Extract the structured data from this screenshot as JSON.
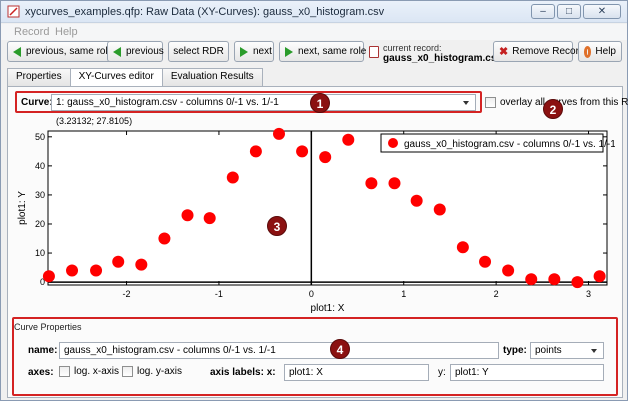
{
  "window": {
    "title": "xycurves_examples.qfp: Raw Data (XY-Curves): gauss_x0_histogram.csv",
    "controls": [
      "–",
      "□",
      "✕"
    ]
  },
  "menu": [
    "Record",
    "Help"
  ],
  "toolbar": {
    "prev_same_role": "previous, same role",
    "previous": "previous",
    "select_rdr": "select RDR",
    "next": "next",
    "next_same_role": "next, same role",
    "current_record_label": "current record:",
    "current_record_value": "gauss_x0_histogram.csv",
    "remove_record": "Remove Record",
    "help": "Help"
  },
  "tabs": [
    "Properties",
    "XY-Curves editor",
    "Evaluation Results"
  ],
  "curve": {
    "label": "Curve:",
    "selected": "1: gauss_x0_histogram.csv - columns 0/-1 vs. 1/-1",
    "overlay_label": "overlay all curves from this RDR"
  },
  "badges": [
    "1",
    "2",
    "3",
    "4"
  ],
  "coordinate_readout": "(3.23132; 27.8105)",
  "chart_data": {
    "type": "scatter",
    "xlabel": "plot1: X",
    "ylabel": "plot1: Y",
    "xlim": [
      -2.85,
      3.2
    ],
    "ylim": [
      -1,
      52
    ],
    "xticks": [
      -2,
      -1,
      0,
      1,
      2,
      3
    ],
    "yticks": [
      0,
      10,
      20,
      30,
      40,
      50
    ],
    "legend_position": "top-right",
    "marker_color": "#ff0000",
    "series": [
      {
        "name": "gauss_x0_histogram.csv - columns 0/-1 vs. 1/-1",
        "x": [
          -2.84,
          -2.59,
          -2.33,
          -2.09,
          -1.84,
          -1.59,
          -1.34,
          -1.1,
          -0.85,
          -0.6,
          -0.35,
          -0.1,
          0.15,
          0.4,
          0.65,
          0.9,
          1.14,
          1.39,
          1.64,
          1.88,
          2.13,
          2.38,
          2.63,
          2.88,
          3.12
        ],
        "y": [
          2,
          4,
          4,
          7,
          6,
          15,
          23,
          22,
          36,
          45,
          51,
          45,
          43,
          49,
          34,
          34,
          28,
          25,
          12,
          7,
          4,
          1,
          1,
          0,
          2
        ]
      }
    ]
  },
  "properties": {
    "section_title": "Curve Properties",
    "name_label": "name:",
    "name_value": "gauss_x0_histogram.csv - columns 0/-1 vs. 1/-1",
    "type_label": "type:",
    "type_value": "points",
    "axes_label": "axes:",
    "log_x": "log. x-axis",
    "log_y": "log. y-axis",
    "axis_labels_label": "axis labels: x:",
    "x_label_value": "plot1: X",
    "y_label": "y:",
    "y_label_value": "plot1: Y"
  },
  "colors": {
    "highlight": "#d42323",
    "badge": "#8b1111",
    "arrow": "#2a9b2a"
  }
}
